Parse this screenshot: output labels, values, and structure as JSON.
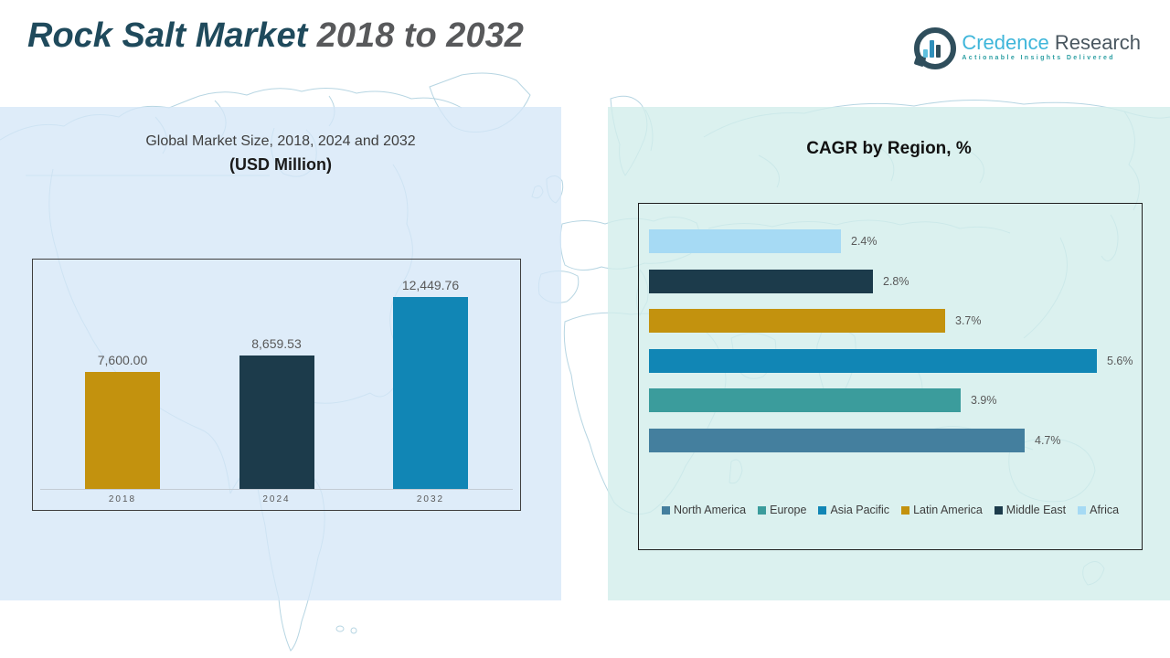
{
  "header": {
    "title_primary": "Rock Salt Market",
    "title_secondary": " 2018 to 2032",
    "logo": {
      "icon": "bar-chart-circle-logo-icon",
      "name_part1": "Credence",
      "name_part2": " Research",
      "tagline": "Actionable Insights Delivered"
    }
  },
  "colors": {
    "title_primary": "#1F4A5C",
    "title_secondary": "#58595B",
    "panel_left_bg": "#DCE9F7",
    "panel_right_bg": "#DDF0ED",
    "label_text": "#595959",
    "gold": "#C3920E",
    "dark_teal": "#1C3B4B",
    "blue": "#1186B5",
    "teal": "#3B9C9C",
    "steel_blue": "#447F9E",
    "light_blue": "#A6DAF4"
  },
  "chart_data": [
    {
      "type": "bar",
      "title": "Global Market Size, 2018, 2024 and 2032",
      "subtitle": "(USD Million)",
      "categories": [
        "2018",
        "2024",
        "2032"
      ],
      "values": [
        7600.0,
        8659.53,
        12449.76
      ],
      "value_labels": [
        "7,600.00",
        "8,659.53",
        "12,449.76"
      ],
      "bar_colors": [
        "#C3920E",
        "#1C3B4B",
        "#1186B5"
      ],
      "xlabel": "",
      "ylabel": "",
      "ylim": [
        0,
        13000
      ],
      "grid": false,
      "data_labels_position": "above-bars"
    },
    {
      "type": "bar",
      "orientation": "horizontal",
      "title": "CAGR by Region, %",
      "rows": [
        {
          "region": "Africa",
          "value": 2.4,
          "label": "2.4%",
          "color": "#A6DAF4"
        },
        {
          "region": "Middle East",
          "value": 2.8,
          "label": "2.8%",
          "color": "#1C3B4B"
        },
        {
          "region": "Latin America",
          "value": 3.7,
          "label": "3.7%",
          "color": "#C3920E"
        },
        {
          "region": "Asia Pacific",
          "value": 5.6,
          "label": "5.6%",
          "color": "#1186B5"
        },
        {
          "region": "Europe",
          "value": 3.9,
          "label": "3.9%",
          "color": "#3B9C9C"
        },
        {
          "region": "North America",
          "value": 4.7,
          "label": "4.7%",
          "color": "#447F9E"
        }
      ],
      "xlim": [
        0,
        6.2
      ],
      "grid": false,
      "legend_position": "bottom",
      "legend": [
        {
          "label": "North America",
          "color": "#447F9E"
        },
        {
          "label": "Europe",
          "color": "#3B9C9C"
        },
        {
          "label": "Asia Pacific",
          "color": "#1186B5"
        },
        {
          "label": "Latin America",
          "color": "#C3920E"
        },
        {
          "label": "Middle East",
          "color": "#1C3B4B"
        },
        {
          "label": "Africa",
          "color": "#A6DAF4"
        }
      ]
    }
  ]
}
